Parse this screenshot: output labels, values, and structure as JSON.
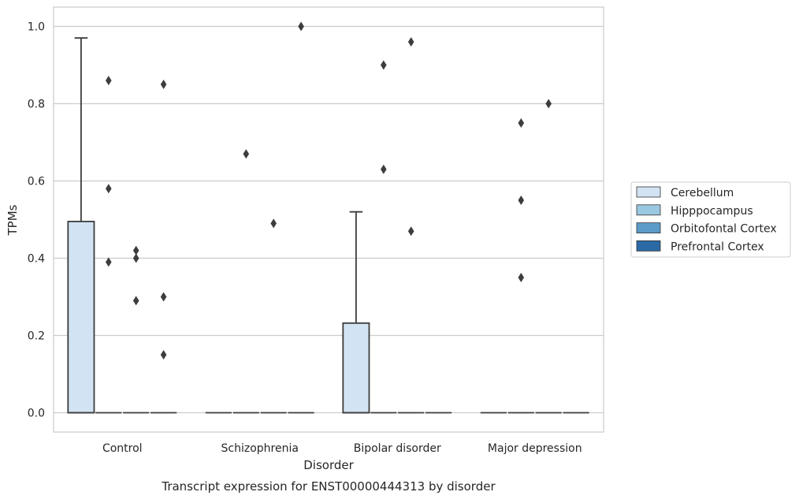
{
  "chart_data": {
    "type": "box",
    "caption": "Transcript expression for ENST00000444313 by disorder",
    "xlabel": "Disorder",
    "ylabel": "TPMs",
    "ylim": [
      -0.05,
      1.05
    ],
    "yticks": [
      0.0,
      0.2,
      0.4,
      0.6,
      0.8,
      1.0
    ],
    "ytick_labels": [
      "0.0",
      "0.2",
      "0.4",
      "0.6",
      "0.8",
      "1.0"
    ],
    "grid": "horizontal",
    "legend_position": "right",
    "categories": [
      "Control",
      "Schizophrenia",
      "Bipolar disorder",
      "Major depression"
    ],
    "series": [
      {
        "name": "Cerebellum",
        "color": "#d2e3f3",
        "boxes": [
          {
            "q1": 0.0,
            "median": 0.0,
            "q3": 0.495,
            "whisker_low": 0.0,
            "whisker_high": 0.97,
            "outliers": []
          },
          {
            "q1": 0.0,
            "median": 0.0,
            "q3": 0.0,
            "whisker_low": 0.0,
            "whisker_high": 0.0,
            "outliers": []
          },
          {
            "q1": 0.0,
            "median": 0.0,
            "q3": 0.232,
            "whisker_low": 0.0,
            "whisker_high": 0.52,
            "outliers": []
          },
          {
            "q1": 0.0,
            "median": 0.0,
            "q3": 0.0,
            "whisker_low": 0.0,
            "whisker_high": 0.0,
            "outliers": []
          }
        ]
      },
      {
        "name": "Hipppocampus",
        "color": "#9ac8e0",
        "boxes": [
          {
            "q1": 0.0,
            "median": 0.0,
            "q3": 0.0,
            "whisker_low": 0.0,
            "whisker_high": 0.0,
            "outliers": [
              0.86,
              0.58,
              0.39
            ]
          },
          {
            "q1": 0.0,
            "median": 0.0,
            "q3": 0.0,
            "whisker_low": 0.0,
            "whisker_high": 0.0,
            "outliers": [
              0.67
            ]
          },
          {
            "q1": 0.0,
            "median": 0.0,
            "q3": 0.0,
            "whisker_low": 0.0,
            "whisker_high": 0.0,
            "outliers": [
              0.9,
              0.63
            ]
          },
          {
            "q1": 0.0,
            "median": 0.0,
            "q3": 0.0,
            "whisker_low": 0.0,
            "whisker_high": 0.0,
            "outliers": [
              0.75,
              0.55,
              0.35
            ]
          }
        ]
      },
      {
        "name": "Orbitofontal Cortex",
        "color": "#5b9bc8",
        "boxes": [
          {
            "q1": 0.0,
            "median": 0.0,
            "q3": 0.0,
            "whisker_low": 0.0,
            "whisker_high": 0.0,
            "outliers": [
              0.42,
              0.4,
              0.29
            ]
          },
          {
            "q1": 0.0,
            "median": 0.0,
            "q3": 0.0,
            "whisker_low": 0.0,
            "whisker_high": 0.0,
            "outliers": [
              0.49
            ]
          },
          {
            "q1": 0.0,
            "median": 0.0,
            "q3": 0.0,
            "whisker_low": 0.0,
            "whisker_high": 0.0,
            "outliers": [
              0.96,
              0.47
            ]
          },
          {
            "q1": 0.0,
            "median": 0.0,
            "q3": 0.0,
            "whisker_low": 0.0,
            "whisker_high": 0.0,
            "outliers": [
              0.8
            ]
          }
        ]
      },
      {
        "name": "Prefrontal Cortex",
        "color": "#2b6aa5",
        "boxes": [
          {
            "q1": 0.0,
            "median": 0.0,
            "q3": 0.0,
            "whisker_low": 0.0,
            "whisker_high": 0.0,
            "outliers": [
              0.85,
              0.3,
              0.15
            ]
          },
          {
            "q1": 0.0,
            "median": 0.0,
            "q3": 0.0,
            "whisker_low": 0.0,
            "whisker_high": 0.0,
            "outliers": [
              1.0
            ]
          },
          {
            "q1": 0.0,
            "median": 0.0,
            "q3": 0.0,
            "whisker_low": 0.0,
            "whisker_high": 0.0,
            "outliers": []
          },
          {
            "q1": 0.0,
            "median": 0.0,
            "q3": 0.0,
            "whisker_low": 0.0,
            "whisker_high": 0.0,
            "outliers": []
          }
        ]
      }
    ]
  }
}
